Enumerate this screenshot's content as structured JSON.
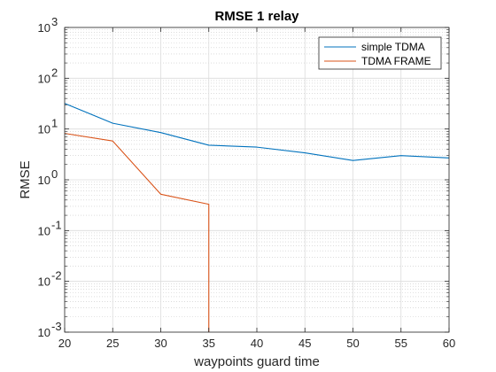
{
  "chart_data": {
    "type": "line",
    "title": "RMSE 1 relay",
    "xlabel": "waypoints guard time",
    "ylabel": "RMSE",
    "yscale": "log",
    "xlim": [
      20,
      60
    ],
    "ylim": [
      0.001,
      1000
    ],
    "grid": true,
    "minor_grid": true,
    "legend_position": "top-right",
    "x_ticks": [
      "20",
      "25",
      "30",
      "35",
      "40",
      "45",
      "50",
      "55",
      "60"
    ],
    "y_ticks": [
      {
        "base": "10",
        "exp": "-3",
        "value": 0.001
      },
      {
        "base": "10",
        "exp": "-2",
        "value": 0.01
      },
      {
        "base": "10",
        "exp": "-1",
        "value": 0.1
      },
      {
        "base": "10",
        "exp": "0",
        "value": 1
      },
      {
        "base": "10",
        "exp": "1",
        "value": 10
      },
      {
        "base": "10",
        "exp": "2",
        "value": 100
      },
      {
        "base": "10",
        "exp": "3",
        "value": 1000
      }
    ],
    "series": [
      {
        "name": "simple TDMA",
        "color": "#0072BD",
        "x": [
          20,
          25,
          30,
          35,
          40,
          45,
          50,
          55,
          60
        ],
        "y": [
          32,
          13,
          8.5,
          4.8,
          4.4,
          3.4,
          2.4,
          3.0,
          2.7
        ]
      },
      {
        "name": "TDMA FRAME",
        "color": "#D95319",
        "x": [
          20,
          25,
          30,
          35,
          35
        ],
        "y": [
          8.2,
          5.8,
          0.52,
          0.33,
          0.001
        ]
      }
    ]
  }
}
